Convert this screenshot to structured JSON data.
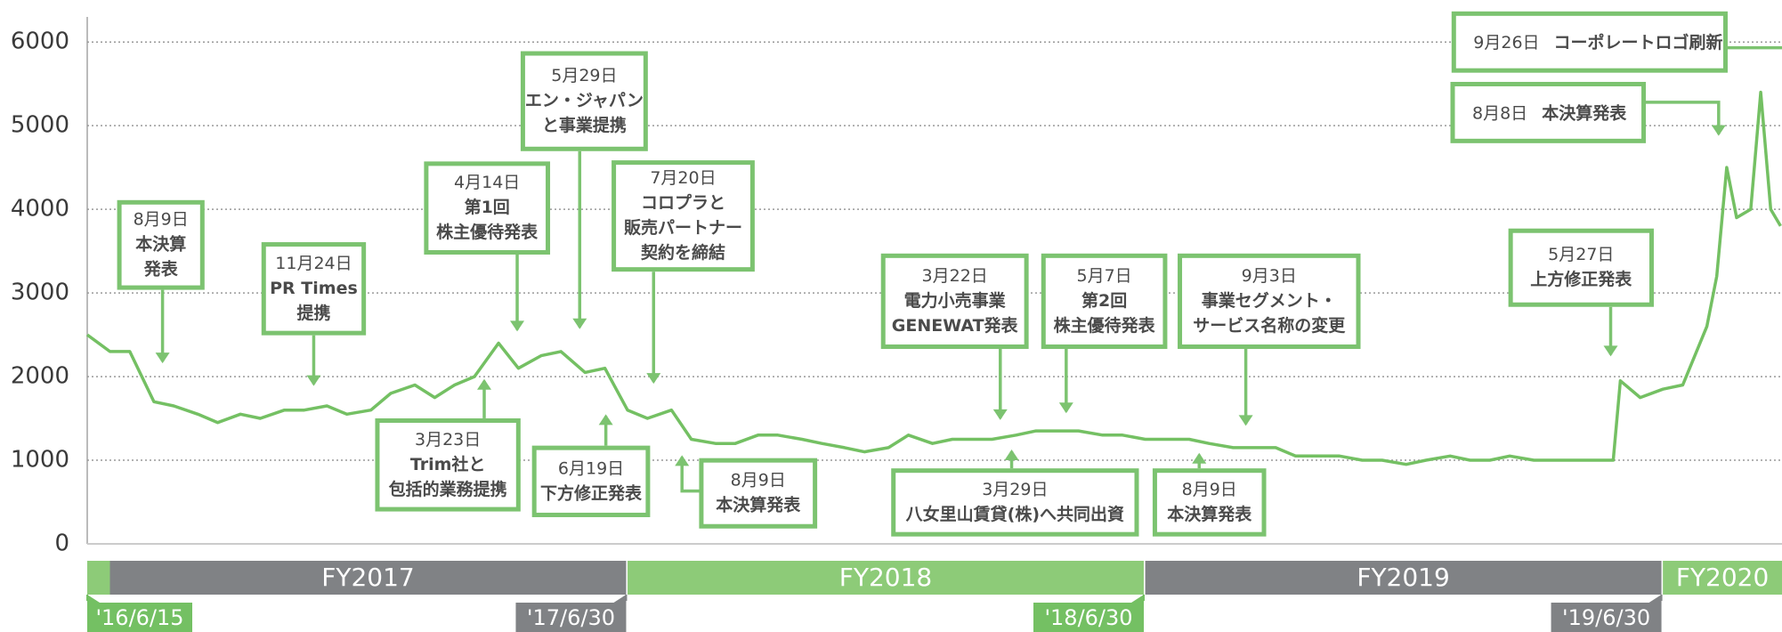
{
  "chart_data": {
    "type": "line",
    "color": "#74c063",
    "x": [
      "2016-06-15",
      "2016-07-01",
      "2016-07-15",
      "2016-08-01",
      "2016-08-15",
      "2016-09-01",
      "2016-09-15",
      "2016-10-01",
      "2016-10-15",
      "2016-11-01",
      "2016-11-15",
      "2016-12-01",
      "2016-12-15",
      "2017-01-01",
      "2017-01-15",
      "2017-02-01",
      "2017-02-15",
      "2017-03-01",
      "2017-03-15",
      "2017-04-01",
      "2017-04-15",
      "2017-05-01",
      "2017-05-15",
      "2017-06-01",
      "2017-06-15",
      "2017-07-01",
      "2017-07-15",
      "2017-08-01",
      "2017-08-15",
      "2017-09-01",
      "2017-09-15",
      "2017-10-01",
      "2017-10-15",
      "2017-11-01",
      "2017-11-15",
      "2017-12-01",
      "2017-12-15",
      "2018-01-01",
      "2018-01-15",
      "2018-02-01",
      "2018-02-15",
      "2018-03-01",
      "2018-03-15",
      "2018-04-01",
      "2018-04-15",
      "2018-05-01",
      "2018-05-15",
      "2018-06-01",
      "2018-06-15",
      "2018-07-01",
      "2018-07-15",
      "2018-08-01",
      "2018-08-15",
      "2018-09-01",
      "2018-09-15",
      "2018-10-01",
      "2018-10-15",
      "2018-11-01",
      "2018-11-15",
      "2018-12-01",
      "2018-12-15",
      "2019-01-01",
      "2019-01-15",
      "2019-02-01",
      "2019-02-15",
      "2019-03-01",
      "2019-03-15",
      "2019-04-01",
      "2019-04-15",
      "2019-05-01",
      "2019-05-15",
      "2019-05-27",
      "2019-06-01",
      "2019-06-15",
      "2019-07-01",
      "2019-07-15",
      "2019-08-01",
      "2019-08-08",
      "2019-08-15",
      "2019-08-22",
      "2019-09-01",
      "2019-09-08",
      "2019-09-15",
      "2019-09-22"
    ],
    "values": [
      2500,
      2300,
      2300,
      1700,
      1650,
      1550,
      1450,
      1550,
      1500,
      1600,
      1600,
      1650,
      1550,
      1600,
      1800,
      1900,
      1750,
      1900,
      2000,
      2400,
      2100,
      2250,
      2300,
      2050,
      2100,
      1600,
      1500,
      1600,
      1250,
      1200,
      1200,
      1300,
      1300,
      1250,
      1200,
      1150,
      1100,
      1150,
      1300,
      1200,
      1250,
      1250,
      1250,
      1300,
      1350,
      1350,
      1350,
      1300,
      1300,
      1250,
      1250,
      1250,
      1200,
      1150,
      1150,
      1150,
      1050,
      1050,
      1050,
      1000,
      1000,
      950,
      1000,
      1050,
      1000,
      1000,
      1050,
      1000,
      1000,
      1000,
      1000,
      1000,
      1950,
      1750,
      1850,
      1900,
      2600,
      3200,
      4500,
      3900,
      4000,
      5400,
      4000,
      3800
    ],
    "xlim": [
      "2016-06-15",
      "2019-09-23"
    ],
    "ylim": [
      0,
      6300
    ],
    "yticks": [
      0,
      1000,
      2000,
      3000,
      4000,
      5000,
      6000
    ],
    "grid": true,
    "xticks": [
      {
        "value": "2016-06-15",
        "label": "'16/6/15"
      },
      {
        "value": "2017-06-30",
        "label": "'17/6/30"
      },
      {
        "value": "2018-06-30",
        "label": "'18/6/30"
      },
      {
        "value": "2019-06-30",
        "label": "'19/6/30"
      }
    ],
    "tag_colors": [
      "#74c063",
      "#808285",
      "#74c063",
      "#808285"
    ],
    "fiscal_years": [
      {
        "label": "FY2017",
        "start": "2016-07-01",
        "end": "2017-06-30",
        "color": "#808285"
      },
      {
        "label": "FY2018",
        "start": "2017-07-01",
        "end": "2018-06-30",
        "color": "#8dcb78"
      },
      {
        "label": "FY2019",
        "start": "2018-07-01",
        "end": "2019-06-30",
        "color": "#808285"
      },
      {
        "label": "FY2020",
        "start": "2019-07-01",
        "end": "2019-09-23",
        "color": "#8dcb78"
      }
    ],
    "annotations": [
      {
        "date": "8月9日",
        "lines": [
          "本決算",
          "発表"
        ]
      },
      {
        "date": "11月24日",
        "lines": [
          "PR Times",
          "提携"
        ]
      },
      {
        "date": "4月14日",
        "lines": [
          "第1回",
          "株主優待発表"
        ]
      },
      {
        "date": "5月29日",
        "lines": [
          "エン・ジャパン",
          "と事業提携"
        ]
      },
      {
        "date": "7月20日",
        "lines": [
          "コロプラと",
          "販売パートナー",
          "契約を締結"
        ]
      },
      {
        "date": "3月23日",
        "lines": [
          "Trim社と",
          "包括的業務提携"
        ]
      },
      {
        "date": "6月19日",
        "lines": [
          "下方修正発表"
        ]
      },
      {
        "date": "8月9日",
        "lines": [
          "本決算発表"
        ]
      },
      {
        "date": "3月22日",
        "lines": [
          "電力小売事業",
          "GENEWAT発表"
        ]
      },
      {
        "date": "5月7日",
        "lines": [
          "第2回",
          "株主優待発表"
        ]
      },
      {
        "date": "9月3日",
        "lines": [
          "事業セグメント・",
          "サービス名称の変更"
        ]
      },
      {
        "date": "3月29日",
        "lines": [
          "八女里山賃貸(株)へ共同出資"
        ]
      },
      {
        "date": "8月9日",
        "lines": [
          "本決算発表"
        ]
      },
      {
        "date": "5月27日",
        "lines": [
          "上方修正発表"
        ]
      },
      {
        "date": "8月8日",
        "lines": [
          "本決算発表"
        ]
      },
      {
        "date": "9月26日",
        "lines": [
          "コーポレートロゴ刷新"
        ]
      }
    ]
  }
}
